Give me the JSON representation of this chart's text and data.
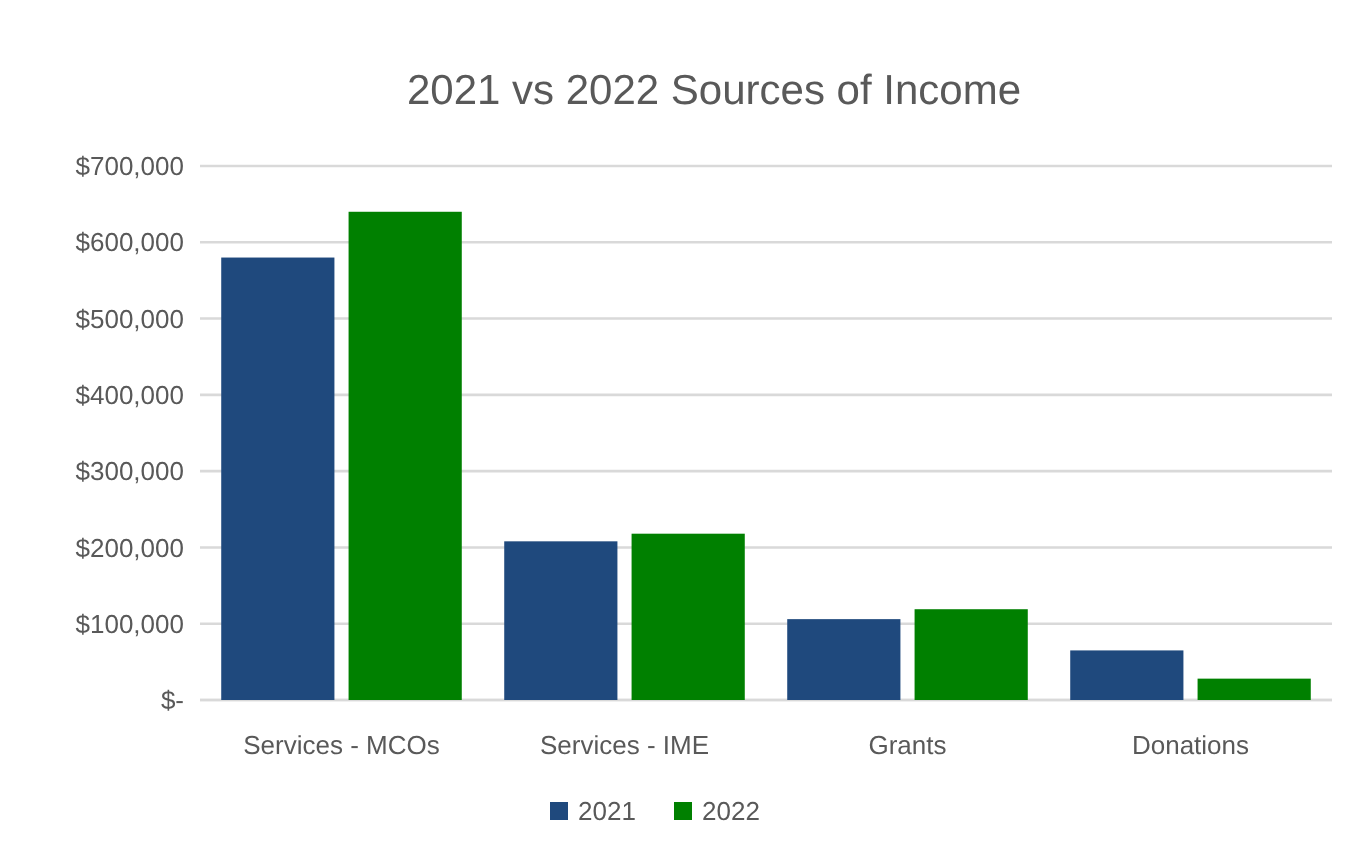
{
  "chart_data": {
    "type": "bar",
    "title": "2021 vs 2022 Sources of Income",
    "categories": [
      "Services - MCOs",
      "Services - IME",
      "Grants",
      "Donations"
    ],
    "series": [
      {
        "name": "2021",
        "color": "#1f497d",
        "values": [
          580000,
          208000,
          106000,
          65000
        ]
      },
      {
        "name": "2022",
        "color": "#008000",
        "values": [
          640000,
          218000,
          119000,
          28000
        ]
      }
    ],
    "ylim": [
      0,
      700000
    ],
    "yticks": [
      {
        "value": 0,
        "label": "$-"
      },
      {
        "value": 100000,
        "label": "$100,000"
      },
      {
        "value": 200000,
        "label": "$200,000"
      },
      {
        "value": 300000,
        "label": "$300,000"
      },
      {
        "value": 400000,
        "label": "$400,000"
      },
      {
        "value": 500000,
        "label": "$500,000"
      },
      {
        "value": 600000,
        "label": "$600,000"
      },
      {
        "value": 700000,
        "label": "$700,000"
      }
    ],
    "grid": "y",
    "legend": "bottom"
  }
}
